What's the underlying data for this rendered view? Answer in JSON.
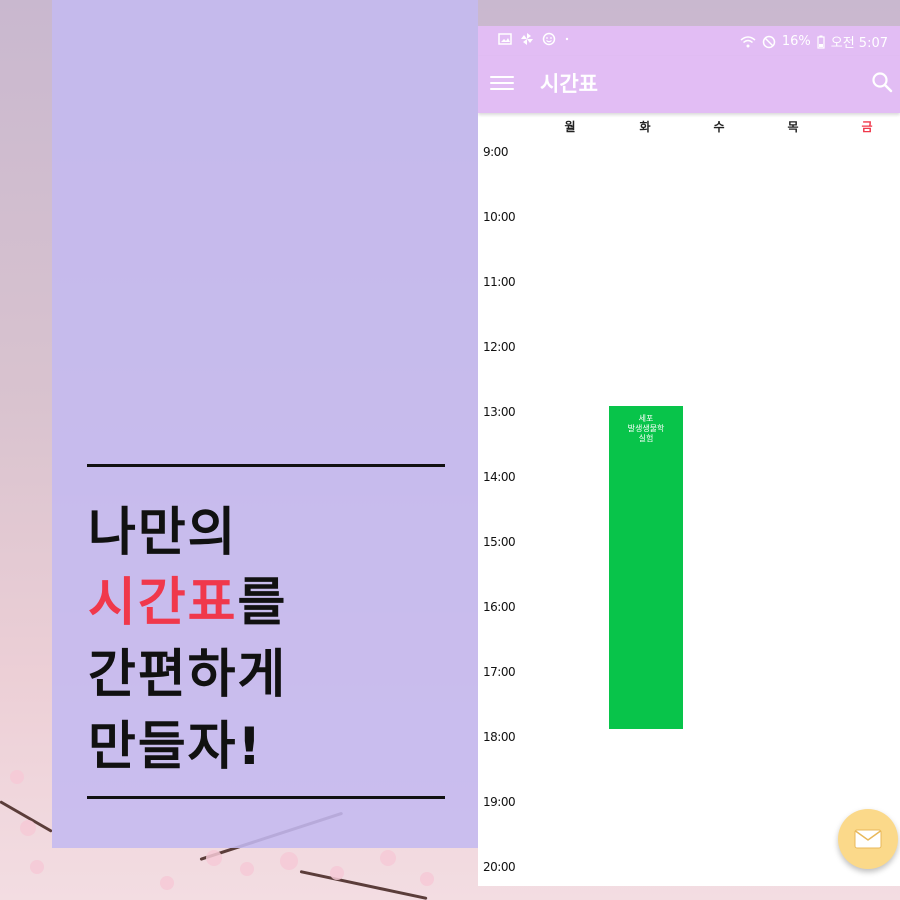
{
  "promo": {
    "line1": "나만의",
    "line2_accent": "시간표",
    "line2_rest": "를",
    "line3": "간편하게",
    "line4": "만들자!"
  },
  "statusbar": {
    "battery": "16%",
    "time": "오전 5:07"
  },
  "appbar": {
    "title": "시간표"
  },
  "days": [
    "월",
    "화",
    "수",
    "목",
    "금"
  ],
  "times": [
    "9:00",
    "10:00",
    "11:00",
    "12:00",
    "13:00",
    "14:00",
    "15:00",
    "16:00",
    "17:00",
    "18:00",
    "19:00",
    "20:00"
  ],
  "course": {
    "line1": "세포",
    "line2": "발생생물학",
    "line3": "실험",
    "day": "화",
    "start": "13:00",
    "end": "18:00"
  },
  "colors": {
    "appbar": "#e2bdf4",
    "accent": "#f0384b",
    "course": "#08c44a",
    "promo_panel": "#c4baf0",
    "fab": "#fbd98a"
  },
  "icons": {
    "menu": "menu-icon",
    "search": "search-icon",
    "fab": "mail-icon"
  }
}
